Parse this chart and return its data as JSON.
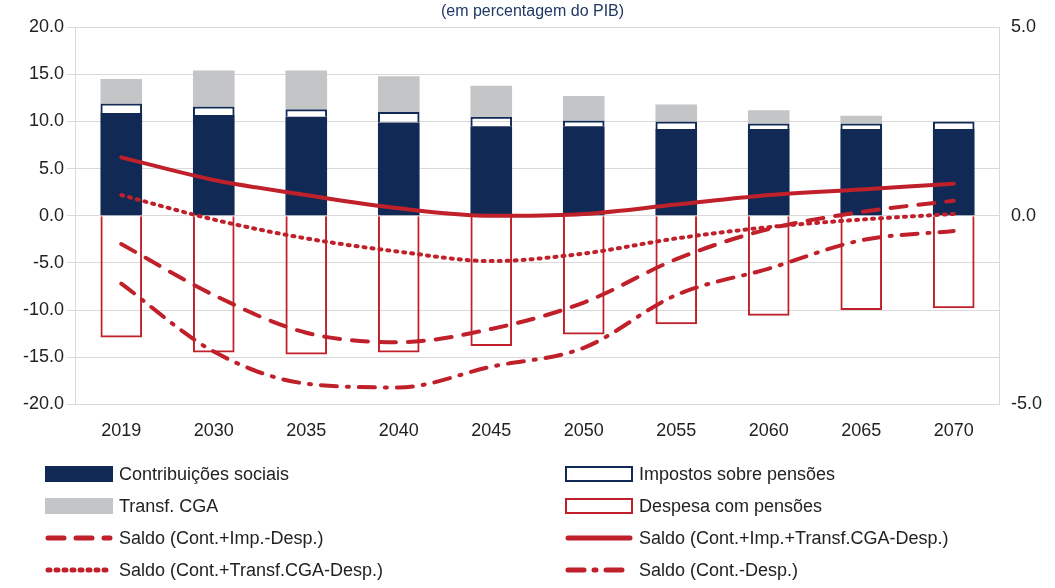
{
  "chart_data": {
    "type": "bar",
    "title": "(em percentagem do PIB)",
    "categories": [
      "2019",
      "2030",
      "2035",
      "2040",
      "2045",
      "2050",
      "2055",
      "2060",
      "2065",
      "2070"
    ],
    "stacked": true,
    "series": [
      {
        "name": "Contribuições sociais",
        "color": "#112a55",
        "values": [
          10.9,
          10.7,
          10.5,
          9.9,
          9.5,
          9.5,
          9.2,
          9.2,
          9.2,
          9.2
        ]
      },
      {
        "name": "Impostos sobre pensões",
        "color": "#112a55",
        "line_style": "solid",
        "values": [
          1.0,
          0.9,
          0.8,
          1.1,
          1.0,
          0.6,
          0.8,
          0.6,
          0.6,
          0.8
        ]
      },
      {
        "name": "Transf. CGA",
        "color": "#c4c5c7",
        "values": [
          2.6,
          3.8,
          4.1,
          3.8,
          3.3,
          2.6,
          1.8,
          1.4,
          0.8,
          0
        ]
      },
      {
        "name": "Despesa com pensões",
        "color": "#c0202a",
        "line_style": "solid",
        "values": [
          -12.9,
          -14.5,
          -14.7,
          -14.5,
          -13.8,
          -12.6,
          -11.5,
          -10.6,
          -10.0,
          -9.8
        ]
      },
      {
        "name": "Saldo (Cont.+Imp.-Desp.)",
        "type": "line",
        "axis": "y2",
        "line_style": "dashed",
        "color": "#c0202a",
        "values": [
          -0.75,
          -2.1,
          -3.1,
          -3.35,
          -3.0,
          -2.3,
          -1.15,
          -0.35,
          0.1,
          0.4
        ]
      },
      {
        "name": "Saldo (Cont.+Imp.+Transf.CGA-Desp.)",
        "type": "line",
        "axis": "y2",
        "line_style": "solid",
        "color": "#c0202a",
        "values": [
          1.55,
          0.95,
          0.55,
          0.2,
          0.0,
          0.05,
          0.3,
          0.55,
          0.7,
          0.85
        ]
      },
      {
        "name": "Saldo (Cont.+Transf.CGA-Desp.)",
        "type": "line",
        "axis": "y2",
        "line_style": "dotted",
        "color": "#c0202a",
        "values": [
          0.55,
          -0.1,
          -0.6,
          -0.95,
          -1.2,
          -1.0,
          -0.6,
          -0.3,
          -0.1,
          0.05
        ]
      },
      {
        "name": "Saldo (Cont.-Desp.)",
        "type": "line",
        "axis": "y2",
        "line_style": "dashdot",
        "color": "#c0202a",
        "values": [
          -1.8,
          -3.6,
          -4.45,
          -4.55,
          -4.0,
          -3.5,
          -2.1,
          -1.4,
          -0.65,
          -0.4
        ]
      }
    ],
    "ylim": [
      -20,
      20
    ],
    "yticks": [
      {
        "value": -20,
        "label": "-20.0"
      },
      {
        "value": -15,
        "label": "-15.0"
      },
      {
        "value": -10,
        "label": "-10.0"
      },
      {
        "value": -5,
        "label": "-5.0"
      },
      {
        "value": 0,
        "label": "0.0"
      },
      {
        "value": 5,
        "label": "5.0"
      },
      {
        "value": 10,
        "label": "10.0"
      },
      {
        "value": 15,
        "label": "15.0"
      },
      {
        "value": 20,
        "label": "20.0"
      }
    ],
    "y2lim": [
      -5,
      5
    ],
    "y2ticks": [
      {
        "value": -5,
        "label": "-5.0"
      },
      {
        "value": 0,
        "label": "0.0"
      },
      {
        "value": 5,
        "label": "5.0"
      }
    ],
    "grid": "y",
    "legend": "bottom",
    "marker": "none"
  }
}
